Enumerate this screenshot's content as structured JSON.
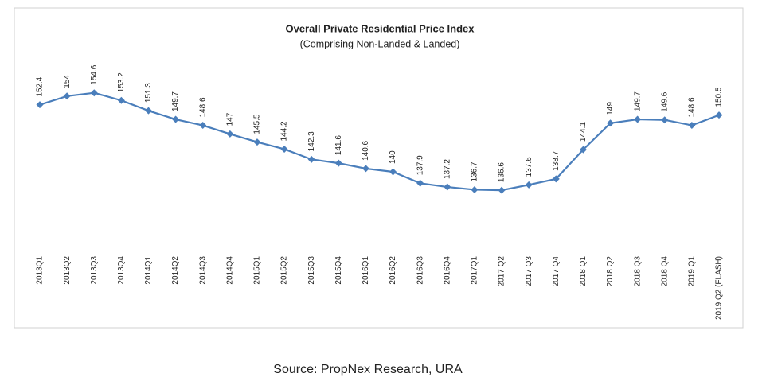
{
  "chart_data": {
    "type": "line",
    "title": "Overall Private Residential Price Index",
    "subtitle": "(Comprising Non-Landed & Landed)",
    "source": "Source: PropNex Research, URA",
    "categories": [
      "2013Q1",
      "2013Q2",
      "2013Q3",
      "2013Q4",
      "2014Q1",
      "2014Q2",
      "2014Q3",
      "2014Q4",
      "2015Q1",
      "2015Q2",
      "2015Q3",
      "2015Q4",
      "2016Q1",
      "2016Q2",
      "2016Q3",
      "2016Q4",
      "2017Q1",
      "2017 Q2",
      "2017 Q3",
      "2017 Q4",
      "2018 Q1",
      "2018 Q2",
      "2018 Q3",
      "2018 Q4",
      "2019 Q1",
      "2019 Q2 (FLASH)"
    ],
    "values": [
      152.4,
      154,
      154.6,
      153.2,
      151.3,
      149.7,
      148.6,
      147,
      145.5,
      144.2,
      142.3,
      141.6,
      140.6,
      140,
      137.9,
      137.2,
      136.7,
      136.6,
      137.6,
      138.7,
      144.1,
      149,
      149.7,
      149.6,
      148.6,
      150.5
    ],
    "color": "#4a7ebb",
    "ylim": [
      125,
      160
    ]
  }
}
